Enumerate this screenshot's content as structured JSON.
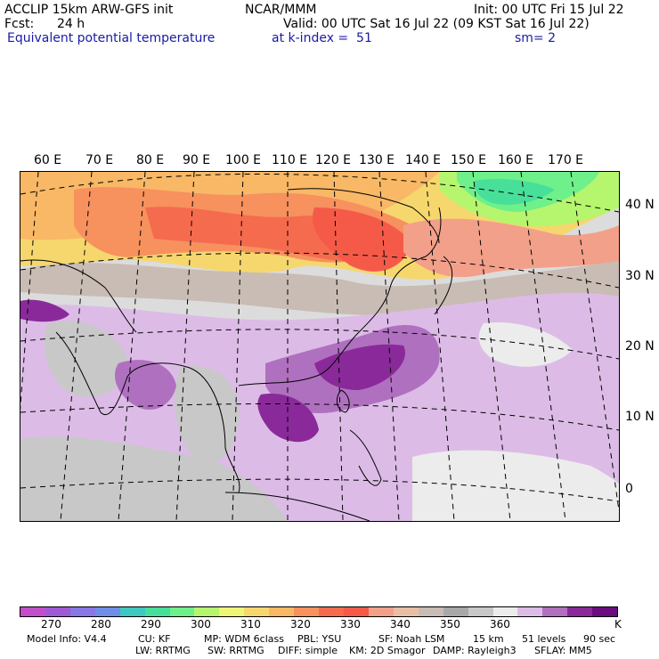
{
  "header": {
    "model": "ACCLIP 15km ARW-GFS init",
    "org": "NCAR/MMM",
    "init": "Init: 00 UTC Fri 15 Jul 22",
    "fcst_label": "Fcst:",
    "fcst_value": "24 h",
    "valid": "Valid: 00 UTC Sat 16 Jul 22 (09 KST Sat 16 Jul 22)",
    "field": "Equivalent potential temperature",
    "level": "at k-index =  51",
    "smoothing": "sm= 2"
  },
  "map": {
    "lon_labels": [
      "60 E",
      "70 E",
      "80 E",
      "90 E",
      "100 E",
      "110 E",
      "120 E",
      "130 E",
      "140 E",
      "150 E",
      "160 E",
      "170 E"
    ],
    "lat_labels": [
      "40 N",
      "30 N",
      "20 N",
      "10 N",
      "0"
    ]
  },
  "colorbar": {
    "colors": [
      "#c24fc9",
      "#a05ad6",
      "#8878e6",
      "#6e8ee8",
      "#3fc8c0",
      "#47df9a",
      "#6ef08a",
      "#b6f56e",
      "#eef578",
      "#f6d76e",
      "#f8b866",
      "#f7915e",
      "#f56b4e",
      "#f55a48",
      "#f2a08a",
      "#e8bfa4",
      "#c8bcb4",
      "#a8a8a8",
      "#c8c8c8",
      "#ececec",
      "#dcbce6",
      "#b070c0",
      "#8a2a9a",
      "#6a0d80"
    ],
    "labels": [
      "270",
      "280",
      "290",
      "300",
      "310",
      "320",
      "330",
      "340",
      "350",
      "360",
      "K"
    ]
  },
  "footer": {
    "line1": [
      "Model Info: V4.4",
      "CU: KF",
      "MP: WDM 6class",
      "PBL: YSU",
      "SF: Noah LSM",
      "15 km",
      "51 levels",
      "90 sec"
    ],
    "line2": [
      "LW: RRTMG",
      "SW: RRTMG",
      "DIFF: simple",
      "KM: 2D Smagor",
      "DAMP: Rayleigh3",
      "SFLAY: MM5"
    ]
  }
}
